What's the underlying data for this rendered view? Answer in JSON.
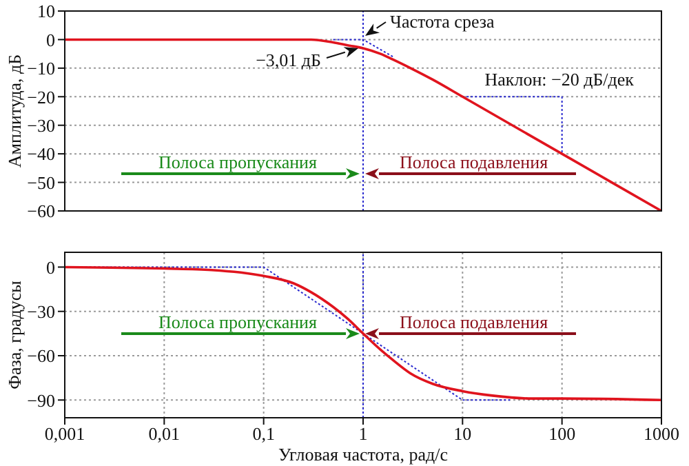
{
  "chart_data": [
    {
      "type": "line",
      "ylabel": "Амплитуда, дБ",
      "log": "x",
      "grid": true,
      "legend": false,
      "tick_labels": "y",
      "xlim": [
        0.001,
        1000
      ],
      "xticks": [
        {
          "value": 0.001,
          "label": null
        },
        {
          "value": 0.01,
          "label": null
        },
        {
          "value": 0.1,
          "label": null
        },
        {
          "value": 1,
          "label": null
        },
        {
          "value": 10,
          "label": null
        },
        {
          "value": 100,
          "label": null
        },
        {
          "value": 1000,
          "label": null
        }
      ],
      "ylim": [
        -60,
        10
      ],
      "yticks": [
        -60,
        -50,
        -40,
        -30,
        -20,
        -10,
        0,
        10
      ],
      "series": [
        {
          "color": "#2a2acf",
          "line_style": "dotted",
          "x": [
            0.5,
            1,
            2
          ],
          "values": [
            0,
            0,
            -6
          ]
        },
        {
          "color": "#2a2acf",
          "line_style": "dotted",
          "x": [
            10,
            100,
            100
          ],
          "values": [
            -20,
            -20,
            -40
          ]
        },
        {
          "color": "#e0141e",
          "line_style": "solid",
          "x": [
            0.001,
            0.01,
            0.1,
            0.2,
            0.3,
            0.5,
            0.7,
            1,
            1.5,
            2,
            3,
            5,
            10,
            100,
            1000
          ],
          "values": [
            0,
            0,
            0,
            0,
            0,
            -1,
            -2,
            -3.01,
            -5,
            -7,
            -10,
            -14,
            -20,
            -40,
            -60
          ]
        }
      ],
      "ref_lines": [
        {
          "axis": "x",
          "value": 1,
          "color": "#2a2acf",
          "line_style": "dotted"
        }
      ],
      "annotations": [
        "Частота среза",
        "−3,01 дБ",
        "Наклон: −20 дБ/дек",
        "Полоса пропускания",
        "Полоса подавления"
      ]
    },
    {
      "type": "line",
      "xlabel": "Угловая частота, рад/с",
      "ylabel": "Фаза, градусы",
      "log": "x",
      "grid": true,
      "legend": false,
      "xlim": [
        0.001,
        1000
      ],
      "xticks": [
        {
          "value": 0.001,
          "label": "0,001"
        },
        {
          "value": 0.01,
          "label": "0,01"
        },
        {
          "value": 0.1,
          "label": "0,1"
        },
        1,
        10,
        100,
        1000
      ],
      "ylim": [
        -102,
        10
      ],
      "yticks": [
        -90,
        -60,
        -30,
        0
      ],
      "series": [
        {
          "color": "#2a2acf",
          "line_style": "dotted",
          "x": [
            0.001,
            0.1,
            10,
            30
          ],
          "values": [
            0,
            0,
            -90,
            -90
          ]
        },
        {
          "color": "#e0141e",
          "line_style": "solid",
          "x": [
            0.001,
            0.01,
            0.03,
            0.1,
            0.2,
            0.3,
            0.5,
            0.7,
            1,
            1.5,
            2,
            3,
            5,
            10,
            20,
            50,
            100,
            1000
          ],
          "values": [
            0,
            -1,
            -2,
            -6,
            -11,
            -17,
            -27,
            -35,
            -45,
            -56,
            -63,
            -72,
            -79,
            -84,
            -87,
            -89,
            -89,
            -90
          ]
        }
      ],
      "ref_lines": [
        {
          "axis": "x",
          "value": 1,
          "color": "#2a2acf",
          "line_style": "dotted"
        }
      ],
      "annotations": [
        "Полоса пропускания",
        "Полоса подавления"
      ]
    }
  ]
}
